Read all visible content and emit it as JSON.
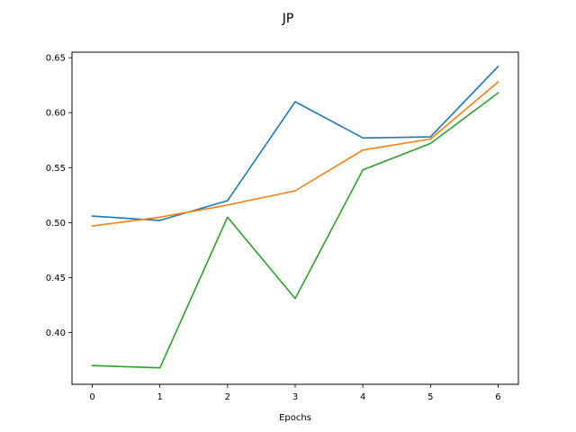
{
  "chart_data": {
    "type": "line",
    "title": "JP",
    "xlabel": "Epochs",
    "ylabel": "",
    "x": [
      0,
      1,
      2,
      3,
      4,
      5,
      6
    ],
    "xlim": [
      -0.3,
      6.3
    ],
    "ylim": [
      0.353,
      0.655
    ],
    "xticks": [
      0,
      1,
      2,
      3,
      4,
      5,
      6
    ],
    "yticks": [
      0.4,
      0.45,
      0.5,
      0.55,
      0.6,
      0.65
    ],
    "ytick_labels": [
      "0.40",
      "0.45",
      "0.50",
      "0.55",
      "0.60",
      "0.65"
    ],
    "grid": false,
    "series": [
      {
        "color": "#1f77b4",
        "values": [
          0.506,
          0.502,
          0.52,
          0.61,
          0.577,
          0.578,
          0.642
        ]
      },
      {
        "color": "#ff7f0e",
        "values": [
          0.497,
          0.505,
          0.516,
          0.529,
          0.566,
          0.576,
          0.628
        ]
      },
      {
        "color": "#2ca02c",
        "values": [
          0.37,
          0.368,
          0.505,
          0.431,
          0.548,
          0.572,
          0.618
        ]
      }
    ]
  }
}
